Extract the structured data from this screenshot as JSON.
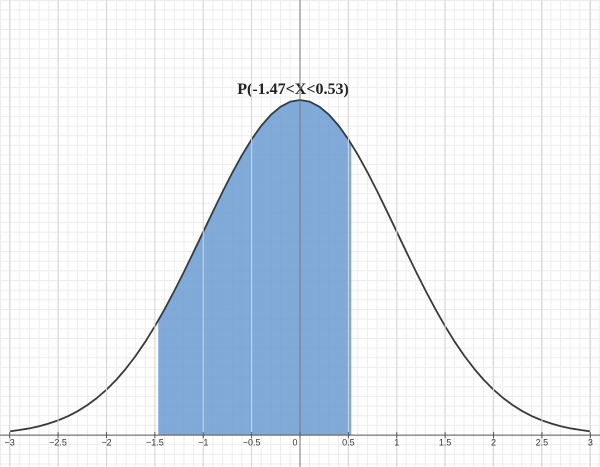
{
  "chart_data": {
    "type": "line",
    "title": "P(-1.47<X<0.53)",
    "xlim": [
      -3.1,
      3.1
    ],
    "ylim": [
      -0.038,
      0.518
    ],
    "xticks": [
      {
        "value": -3,
        "label": "−3"
      },
      {
        "value": -2.5,
        "label": "−2.5"
      },
      {
        "value": -2,
        "label": "−2"
      },
      {
        "value": -1.5,
        "label": "−1.5"
      },
      {
        "value": -1,
        "label": "−1"
      },
      {
        "value": -0.5,
        "label": "−0.5"
      },
      0,
      0.5,
      1,
      1.5,
      2,
      2.5,
      3
    ],
    "grid": true,
    "series": [
      {
        "color": "#6b9bd1",
        "area": true,
        "x": [
          -1.47,
          -1.4,
          -1.3,
          -1.2,
          -1.1,
          -1.0,
          -0.9,
          -0.8,
          -0.7,
          -0.6,
          -0.5,
          -0.4,
          -0.3,
          -0.2,
          -0.1,
          0,
          0.1,
          0.2,
          0.3,
          0.4,
          0.5,
          0.53
        ],
        "values": [
          0.1354,
          0.1497,
          0.1714,
          0.1942,
          0.2179,
          0.242,
          0.2661,
          0.2897,
          0.3123,
          0.3332,
          0.3521,
          0.3683,
          0.3814,
          0.391,
          0.397,
          0.3989,
          0.397,
          0.391,
          0.3814,
          0.3683,
          0.3521,
          0.3467
        ]
      },
      {
        "color": "#3a3a3a",
        "area": false,
        "x": [
          -3.0,
          -2.9,
          -2.8,
          -2.7,
          -2.6,
          -2.5,
          -2.4,
          -2.3,
          -2.2,
          -2.1,
          -2.0,
          -1.9,
          -1.8,
          -1.7,
          -1.6,
          -1.5,
          -1.4,
          -1.3,
          -1.2,
          -1.1,
          -1.0,
          -0.9,
          -0.8,
          -0.7,
          -0.6,
          -0.5,
          -0.4,
          -0.3,
          -0.2,
          -0.1,
          0,
          0.1,
          0.2,
          0.3,
          0.4,
          0.5,
          0.6,
          0.7,
          0.8,
          0.9,
          1.0,
          1.1,
          1.2,
          1.3,
          1.4,
          1.5,
          1.6,
          1.7,
          1.8,
          1.9,
          2.0,
          2.1,
          2.2,
          2.3,
          2.4,
          2.5,
          2.6,
          2.7,
          2.8,
          2.9,
          3.0
        ],
        "values": [
          0.0044,
          0.006,
          0.0079,
          0.0104,
          0.0136,
          0.0175,
          0.0224,
          0.0283,
          0.0355,
          0.044,
          0.054,
          0.0656,
          0.079,
          0.094,
          0.1109,
          0.1295,
          0.1497,
          0.1714,
          0.1942,
          0.2179,
          0.242,
          0.2661,
          0.2897,
          0.3123,
          0.3332,
          0.3521,
          0.3683,
          0.3814,
          0.391,
          0.397,
          0.3989,
          0.397,
          0.391,
          0.3814,
          0.3683,
          0.3521,
          0.3332,
          0.3123,
          0.2897,
          0.2661,
          0.242,
          0.2179,
          0.1942,
          0.1714,
          0.1497,
          0.1295,
          0.1109,
          0.094,
          0.079,
          0.0656,
          0.054,
          0.044,
          0.0355,
          0.0283,
          0.0224,
          0.0175,
          0.0136,
          0.0104,
          0.0079,
          0.006,
          0.0044
        ]
      }
    ]
  }
}
